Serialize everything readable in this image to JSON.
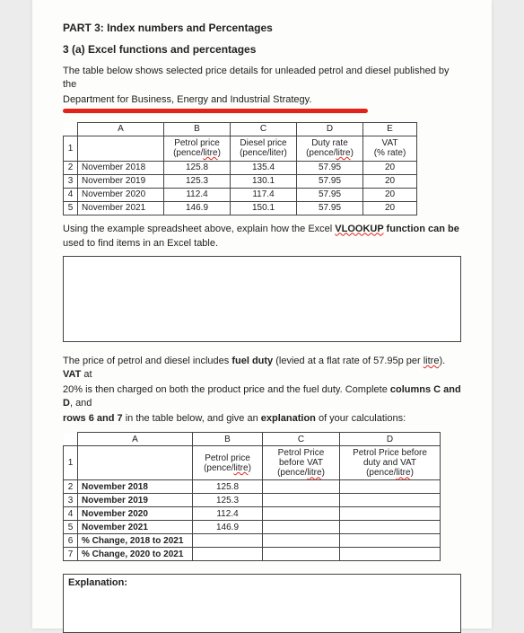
{
  "part_title": "PART 3: Index numbers and Percentages",
  "sub_title": "3 (a) Excel functions and percentages",
  "intro1": "The table below shows selected price details for unleaded petrol and diesel published by the",
  "intro2": "Department for Business, Energy and Industrial Strategy.",
  "table1": {
    "head": {
      "A": "A",
      "B": "B",
      "C": "C",
      "D": "D",
      "E": "E",
      "b1": "Petrol price",
      "b2": "(pence/",
      "b2s": "litre",
      "c1": "Diesel price",
      "c2": "(pence/liter)",
      "d1": "Duty rate",
      "d2": "(pence/",
      "d2s": "litre",
      "e1": "VAT",
      "e2": "(% rate)"
    },
    "rows": [
      {
        "n": "2",
        "a": "November 2018",
        "b": "125.8",
        "c": "135.4",
        "d": "57.95",
        "e": "20"
      },
      {
        "n": "3",
        "a": "November 2019",
        "b": "125.3",
        "c": "130.1",
        "d": "57.95",
        "e": "20"
      },
      {
        "n": "4",
        "a": "November 2020",
        "b": "112.4",
        "c": "117.4",
        "d": "57.95",
        "e": "20"
      },
      {
        "n": "5",
        "a": "November 2021",
        "b": "146.9",
        "c": "150.1",
        "d": "57.95",
        "e": "20"
      }
    ]
  },
  "mid1a": "Using the example spreadsheet above, explain how the Excel ",
  "mid1b": "VLOOKUP",
  "mid1c": " function can be",
  "mid2": "used to find items in an Excel table.",
  "para2a": "The price of petrol and diesel includes ",
  "para2b": "fuel duty",
  "para2c": " (levied at a flat rate of 57.95p per ",
  "para2d": "litre",
  "para2e": ").  ",
  "para2f": "VAT",
  "para2g": " at",
  "para3a": "20% is then charged on both the product price and the fuel duty. Complete ",
  "para3b": "columns C and D",
  "para3c": ", and",
  "para4a": "rows 6 and 7",
  "para4b": " in the table below, and give an ",
  "para4c": "explanation",
  "para4d": " of your calculations:",
  "table2": {
    "head": {
      "A": "A",
      "B": "B",
      "C": "C",
      "D": "D",
      "b1": "Petrol price",
      "b2": "(pence/",
      "b2s": "litre",
      "c1": "Petrol Price",
      "c2": "before VAT",
      "c3": "(pence/",
      "c3s": "litre",
      "d1": "Petrol Price before",
      "d2": "duty and VAT",
      "d3": "(pence/",
      "d3s": "litre"
    },
    "rows": [
      {
        "n": "2",
        "a": "November 2018",
        "b": "125.8"
      },
      {
        "n": "3",
        "a": "November 2019",
        "b": "125.3"
      },
      {
        "n": "4",
        "a": "November 2020",
        "b": "112.4"
      },
      {
        "n": "5",
        "a": "November 2021",
        "b": "146.9"
      },
      {
        "n": "6",
        "a": "% Change, 2018 to 2021"
      },
      {
        "n": "7",
        "a": "% Change, 2020 to 2021"
      }
    ]
  },
  "expl": "Explanation:"
}
